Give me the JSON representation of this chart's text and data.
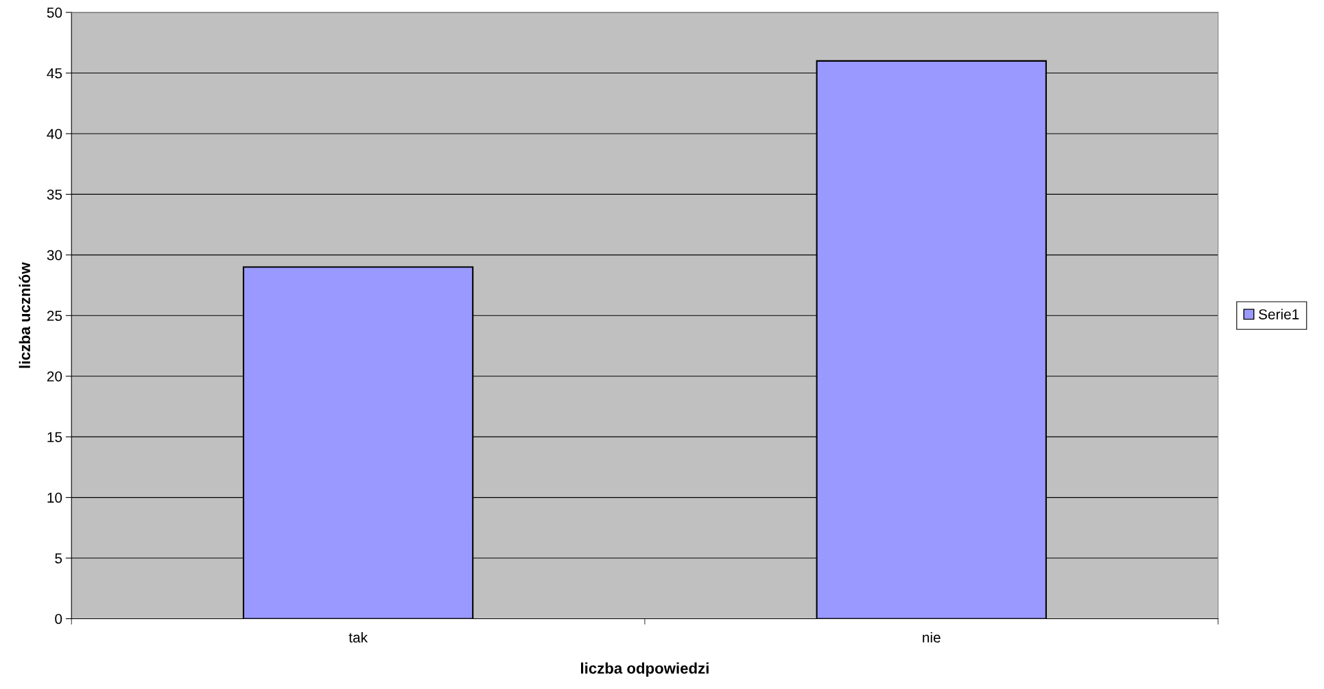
{
  "chart_data": {
    "type": "bar",
    "xlabel": "liczba odpowiedzi",
    "ylabel": "liczba uczniów",
    "categories": [
      "tak",
      "nie"
    ],
    "series": [
      {
        "name": "Serie1",
        "color": "#9999ff",
        "values": [
          29,
          46
        ]
      }
    ],
    "ylim": [
      0,
      50
    ],
    "yticks": [
      0,
      5,
      10,
      15,
      20,
      25,
      30,
      35,
      40,
      45,
      50
    ],
    "grid": "y",
    "legend": "right"
  }
}
